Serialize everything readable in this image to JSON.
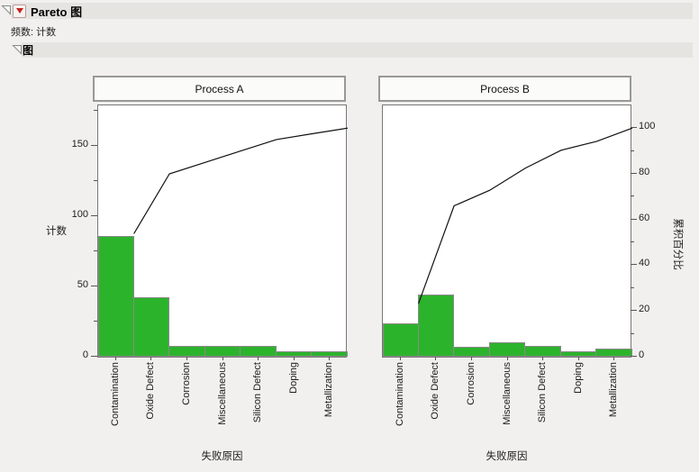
{
  "outline": {
    "title": "Pareto 图",
    "subtitle": "频数: 计数",
    "section_title": "图"
  },
  "colors": {
    "bar_fill": "#2cb32c",
    "bar_border": "#8a8a8a",
    "cumulative_line": "#111111",
    "header_band": "#e6e4e1",
    "background": "#f1f0ee"
  },
  "chart_data": [
    {
      "type": "bar",
      "subtype": "pareto",
      "panel_title": "Process A",
      "categories": [
        "Contamination",
        "Oxide Defect",
        "Corrosion",
        "Miscellaneous",
        "Silicon Defect",
        "Doping",
        "Metallization"
      ],
      "values": [
        86,
        42,
        8,
        8,
        8,
        4,
        4
      ],
      "total": 160,
      "cumulative_pct": [
        53.8,
        80.0,
        85.0,
        90.0,
        95.0,
        97.5,
        100.0
      ],
      "xlabel": "失败原因",
      "ylabel": "计数",
      "ylim": [
        0,
        175
      ],
      "yticks": [
        0,
        50,
        100,
        150
      ],
      "ytick_minor_step": 25,
      "grid": false,
      "legend": "none"
    },
    {
      "type": "bar",
      "subtype": "pareto",
      "panel_title": "Process B",
      "categories": [
        "Contamination",
        "Oxide Defect",
        "Corrosion",
        "Miscellaneous",
        "Silicon Defect",
        "Doping",
        "Metallization"
      ],
      "values": [
        24,
        44,
        7,
        10,
        8,
        4,
        6
      ],
      "total": 103,
      "cumulative_pct": [
        23.3,
        66.0,
        72.8,
        82.5,
        90.3,
        94.2,
        100.0
      ],
      "xlabel": "失败原因",
      "y2label": "累积百分比",
      "y2lim": [
        0,
        100
      ],
      "y2ticks": [
        0,
        20,
        40,
        60,
        80,
        100
      ],
      "y2tick_minor_step": 10,
      "grid": false,
      "legend": "none"
    }
  ]
}
